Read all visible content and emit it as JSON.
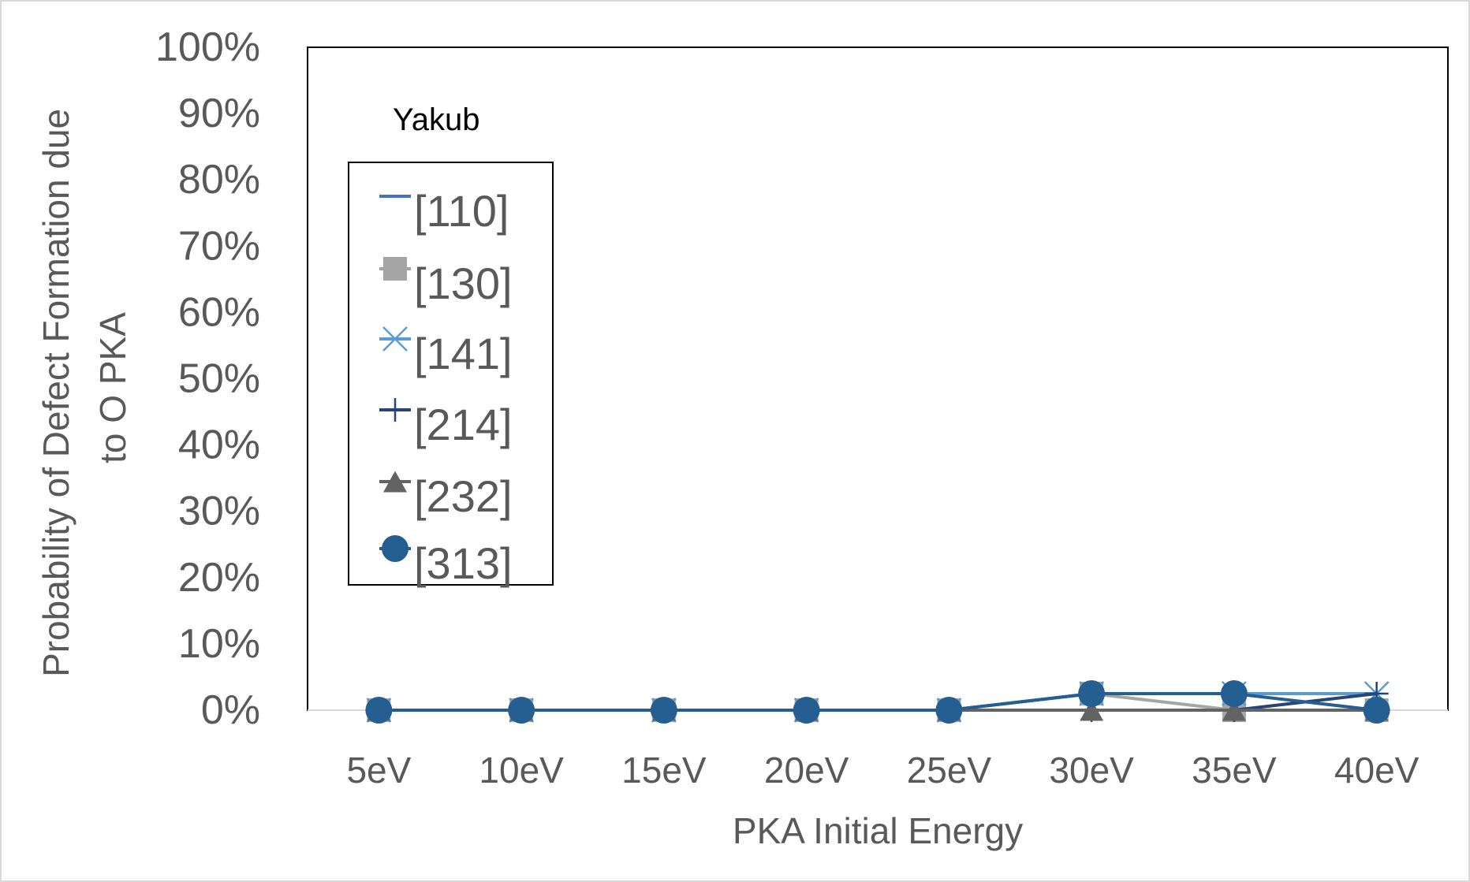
{
  "chart_data": {
    "type": "line",
    "title": "",
    "legend_title": "Yakub",
    "xlabel": "PKA Initial Energy",
    "ylabel": "Probability of Defect Formation due to O PKA",
    "ylabel_lines": [
      "Probability of Defect Formation due",
      "to O PKA"
    ],
    "categories": [
      "5eV",
      "10eV",
      "15eV",
      "20eV",
      "25eV",
      "30eV",
      "35eV",
      "40eV"
    ],
    "ylim": [
      0,
      100
    ],
    "yticks": [
      0,
      10,
      20,
      30,
      40,
      50,
      60,
      70,
      80,
      90,
      100
    ],
    "ytick_labels": [
      "0%",
      "10%",
      "20%",
      "30%",
      "40%",
      "50%",
      "60%",
      "70%",
      "80%",
      "90%",
      "100%"
    ],
    "grid": false,
    "legend_position": "top-left",
    "series": [
      {
        "name": "[110]",
        "values": [
          0,
          0,
          0,
          0,
          0,
          2.5,
          2.5,
          2.5
        ],
        "color": "#4472C4",
        "marker": "none"
      },
      {
        "name": "[130]",
        "values": [
          0,
          0,
          0,
          0,
          0,
          2.5,
          0,
          0
        ],
        "color": "#A5A5A5",
        "marker": "square"
      },
      {
        "name": "[141]",
        "values": [
          0,
          0,
          0,
          0,
          0,
          2.5,
          2.5,
          2.5
        ],
        "color": "#5B9BD5",
        "marker": "x"
      },
      {
        "name": "[214]",
        "values": [
          0,
          0,
          0,
          0,
          0,
          0,
          0,
          2.5
        ],
        "color": "#264478",
        "marker": "plus"
      },
      {
        "name": "[232]",
        "values": [
          0,
          0,
          0,
          0,
          0,
          0,
          0,
          0
        ],
        "color": "#636363",
        "marker": "triangle"
      },
      {
        "name": "[313]",
        "values": [
          0,
          0,
          0,
          0,
          0,
          2.5,
          2.5,
          0
        ],
        "color": "#255E91",
        "marker": "circle"
      }
    ]
  }
}
